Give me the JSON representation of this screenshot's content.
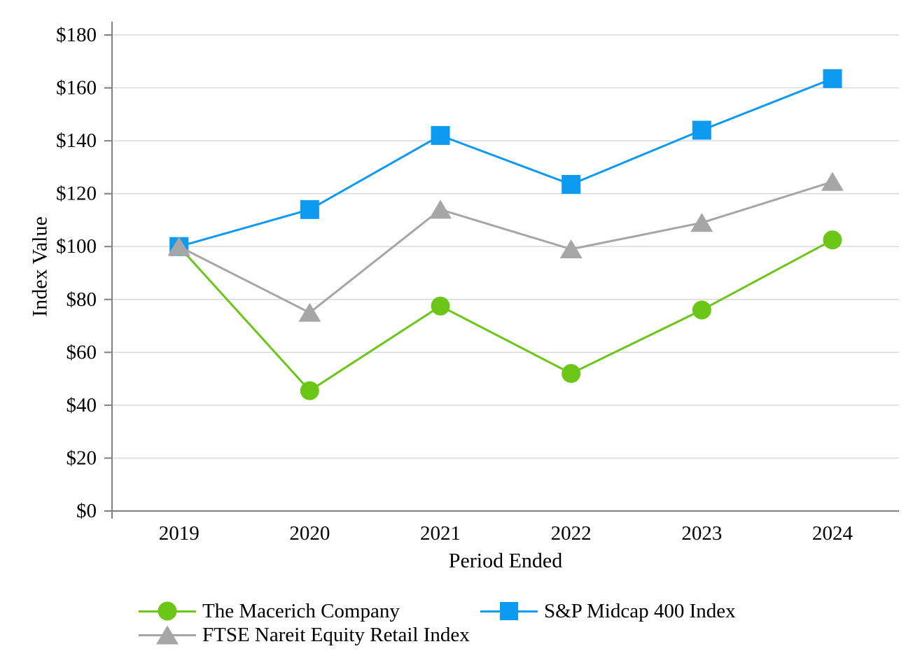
{
  "chart_data": {
    "type": "line",
    "xlabel": "Period Ended",
    "ylabel": "Index Value",
    "categories": [
      "2019",
      "2020",
      "2021",
      "2022",
      "2023",
      "2024"
    ],
    "series": [
      {
        "name": "The Macerich Company",
        "marker": "circle",
        "color": "#6CC617",
        "values": [
          100,
          45.5,
          77.5,
          52,
          76,
          102.5
        ]
      },
      {
        "name": "S&P Midcap 400 Index",
        "marker": "square",
        "color": "#0D9BF2",
        "values": [
          100,
          114,
          142,
          123.5,
          144,
          163.5
        ]
      },
      {
        "name": "FTSE Nareit Equity Retail Index",
        "marker": "triangle",
        "color": "#A6A6A6",
        "values": [
          100,
          75,
          114,
          99,
          109,
          124.5
        ]
      }
    ],
    "ylim": [
      0,
      180
    ],
    "y_ticks": [
      {
        "value": 0,
        "label": "$0"
      },
      {
        "value": 20,
        "label": "$20"
      },
      {
        "value": 40,
        "label": "$40"
      },
      {
        "value": 60,
        "label": "$60"
      },
      {
        "value": 80,
        "label": "$80"
      },
      {
        "value": 100,
        "label": "$100"
      },
      {
        "value": 120,
        "label": "$120"
      },
      {
        "value": 140,
        "label": "$140"
      },
      {
        "value": 160,
        "label": "$160"
      },
      {
        "value": 180,
        "label": "$180"
      }
    ],
    "grid": true,
    "legend_position": "bottom",
    "axis_color": "#808080",
    "gridline_color": "#D9D9D9",
    "text_color": "#000000",
    "background_color": "#FFFFFF"
  }
}
